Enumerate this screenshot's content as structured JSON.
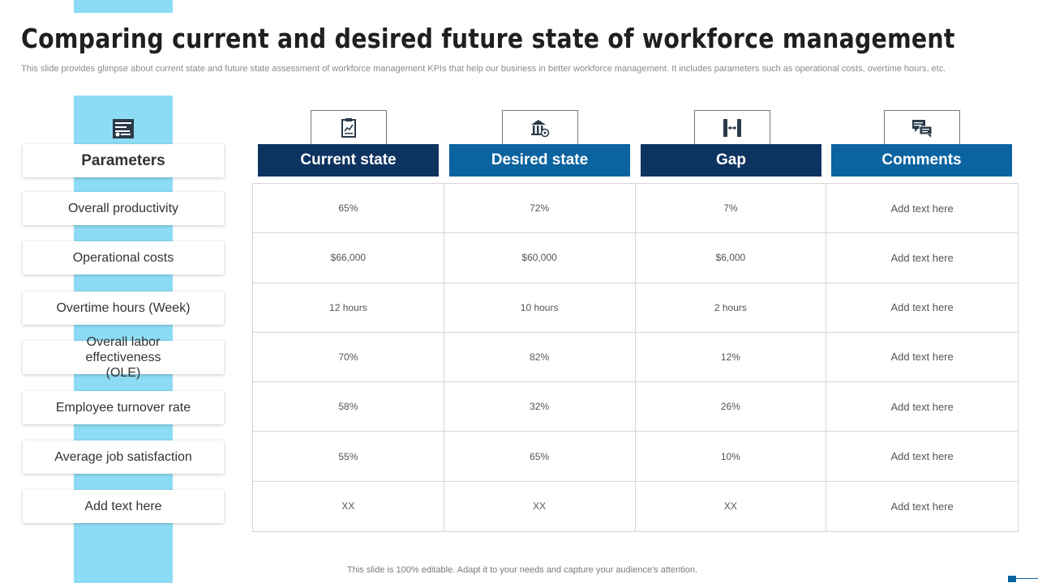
{
  "title": "Comparing current and desired future state of workforce management",
  "subtitle": "This slide provides glimpse about current state and future state assessment of workforce management KPIs that help our business in better workforce management. It includes parameters such as operational costs, overtime hours, etc.",
  "colors": {
    "accent_light": "#8ddcf5",
    "header_dark": "#0d3360",
    "header_mid": "#0b63a0"
  },
  "parameters": {
    "header": "Parameters",
    "icon": "settings-panel-icon",
    "items": [
      "Overall productivity",
      "Operational costs",
      "Overtime hours (Week)",
      "Overall labor effectiveness (OLE)",
      "Employee turnover  rate",
      "Average job satisfaction",
      "Add text here"
    ]
  },
  "columns": [
    {
      "label": "Current state",
      "icon": "report-chart-icon"
    },
    {
      "label": "Desired state",
      "icon": "bank-target-icon"
    },
    {
      "label": "Gap",
      "icon": "gap-arrows-icon"
    },
    {
      "label": "Comments",
      "icon": "chat-bubbles-icon"
    }
  ],
  "rows": [
    [
      "65%",
      "72%",
      "7%",
      "Add text here"
    ],
    [
      "$66,000",
      "$60,000",
      "$6,000",
      "Add text here"
    ],
    [
      "12 hours",
      "10 hours",
      "2 hours",
      "Add text here"
    ],
    [
      "70%",
      "82%",
      "12%",
      "Add text here"
    ],
    [
      "58%",
      "32%",
      "26%",
      "Add text here"
    ],
    [
      "55%",
      "65%",
      "10%",
      "Add text here"
    ],
    [
      "XX",
      "XX",
      "XX",
      "Add text here"
    ]
  ],
  "footer": "This slide is 100% editable.  Adapt it to your needs and capture your audience's attention."
}
